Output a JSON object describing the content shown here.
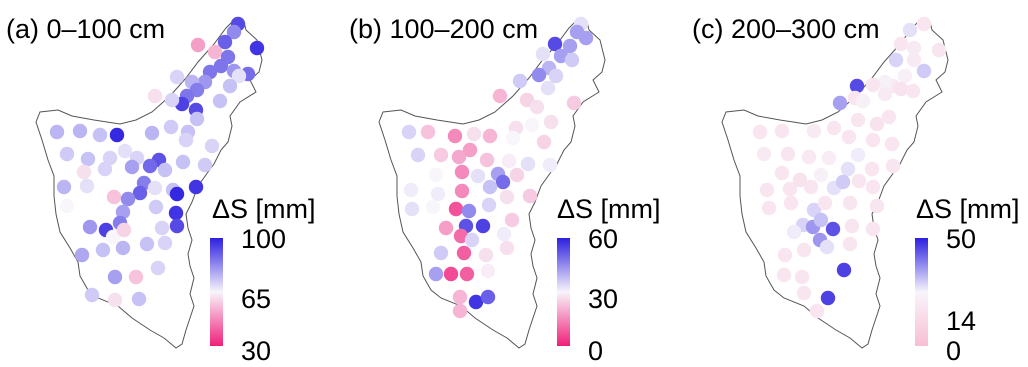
{
  "panels": [
    {
      "title": "(a) 0–100 cm",
      "legend": {
        "title": "ΔS [mm]",
        "ticks": [
          "100",
          "65",
          "30"
        ],
        "colors": {
          "high": "#2d1fe0",
          "mid": "#f8f5fb",
          "low": "#f01f7a"
        }
      }
    },
    {
      "title": "(b) 100–200 cm",
      "legend": {
        "title": "ΔS [mm]",
        "ticks": [
          "60",
          "30",
          "0"
        ],
        "colors": {
          "high": "#2d1fe0",
          "mid": "#f8f5fb",
          "low": "#f01f7a"
        }
      }
    },
    {
      "title": "(c) 200–300 cm",
      "legend": {
        "title": "ΔS [mm]",
        "ticks": [
          "50",
          "14",
          "0"
        ],
        "colors": {
          "high": "#2d1fe0",
          "mid": "#f8f5fb",
          "low": "#f8bfd3"
        }
      }
    }
  ],
  "map": {
    "outline_color": "#555555",
    "points_a": [
      [
        238,
        24,
        0.9
      ],
      [
        234,
        32,
        0.75
      ],
      [
        225,
        42,
        0.85
      ],
      [
        257,
        48,
        0.95
      ],
      [
        198,
        45,
        0.3
      ],
      [
        215,
        52,
        0.35
      ],
      [
        228,
        57,
        0.8
      ],
      [
        221,
        66,
        0.8
      ],
      [
        234,
        71,
        0.72
      ],
      [
        248,
        74,
        0.82
      ],
      [
        239,
        76,
        0.55
      ],
      [
        210,
        72,
        0.8
      ],
      [
        205,
        82,
        0.72
      ],
      [
        192,
        82,
        0.65
      ],
      [
        230,
        86,
        0.62
      ],
      [
        177,
        77,
        0.58
      ],
      [
        197,
        90,
        0.78
      ],
      [
        187,
        96,
        0.8
      ],
      [
        155,
        96,
        0.45
      ],
      [
        182,
        104,
        0.92
      ],
      [
        196,
        110,
        0.9
      ],
      [
        172,
        100,
        0.58
      ],
      [
        220,
        101,
        0.62
      ],
      [
        197,
        119,
        0.62
      ],
      [
        171,
        127,
        0.6
      ],
      [
        188,
        132,
        0.62
      ],
      [
        212,
        146,
        0.58
      ],
      [
        57,
        132,
        0.65
      ],
      [
        80,
        131,
        0.65
      ],
      [
        100,
        135,
        0.62
      ],
      [
        117,
        135,
        0.98
      ],
      [
        152,
        133,
        0.65
      ],
      [
        186,
        140,
        0.58
      ],
      [
        67,
        154,
        0.6
      ],
      [
        88,
        159,
        0.62
      ],
      [
        110,
        158,
        0.58
      ],
      [
        125,
        151,
        0.55
      ],
      [
        137,
        158,
        0.58
      ],
      [
        159,
        160,
        0.88
      ],
      [
        183,
        162,
        0.62
      ],
      [
        205,
        165,
        0.6
      ],
      [
        84,
        172,
        0.45
      ],
      [
        105,
        169,
        0.58
      ],
      [
        132,
        167,
        0.7
      ],
      [
        150,
        166,
        0.83
      ],
      [
        165,
        170,
        0.62
      ],
      [
        64,
        187,
        0.65
      ],
      [
        87,
        186,
        0.55
      ],
      [
        144,
        183,
        0.78
      ],
      [
        140,
        193,
        0.85
      ],
      [
        155,
        188,
        0.55
      ],
      [
        173,
        190,
        0.62
      ],
      [
        196,
        187,
        0.95
      ],
      [
        67,
        206,
        0.5
      ],
      [
        114,
        197,
        0.38
      ],
      [
        128,
        199,
        0.75
      ],
      [
        156,
        207,
        0.6
      ],
      [
        177,
        194,
        0.98
      ],
      [
        123,
        212,
        0.7
      ],
      [
        176,
        213,
        0.95
      ],
      [
        90,
        227,
        0.72
      ],
      [
        120,
        223,
        0.78
      ],
      [
        106,
        230,
        0.92
      ],
      [
        113,
        237,
        0.5
      ],
      [
        124,
        230,
        0.42
      ],
      [
        162,
        228,
        0.58
      ],
      [
        177,
        226,
        0.9
      ],
      [
        103,
        250,
        0.62
      ],
      [
        123,
        248,
        0.65
      ],
      [
        147,
        244,
        0.62
      ],
      [
        165,
        243,
        0.58
      ],
      [
        82,
        255,
        0.68
      ],
      [
        115,
        277,
        0.7
      ],
      [
        136,
        277,
        0.38
      ],
      [
        158,
        268,
        0.58
      ],
      [
        92,
        295,
        0.6
      ],
      [
        115,
        300,
        0.45
      ],
      [
        139,
        299,
        0.62
      ]
    ],
    "points_b": [
      [
        238,
        24,
        0.55
      ],
      [
        234,
        32,
        0.7
      ],
      [
        243,
        38,
        0.7
      ],
      [
        212,
        44,
        0.9
      ],
      [
        227,
        46,
        0.7
      ],
      [
        200,
        54,
        0.55
      ],
      [
        218,
        56,
        0.7
      ],
      [
        229,
        60,
        0.6
      ],
      [
        206,
        68,
        0.65
      ],
      [
        196,
        75,
        0.75
      ],
      [
        213,
        76,
        0.58
      ],
      [
        205,
        88,
        0.55
      ],
      [
        177,
        81,
        0.6
      ],
      [
        157,
        96,
        0.35
      ],
      [
        184,
        100,
        0.42
      ],
      [
        194,
        107,
        0.45
      ],
      [
        231,
        103,
        0.4
      ],
      [
        208,
        122,
        0.45
      ],
      [
        189,
        125,
        0.5
      ],
      [
        173,
        128,
        0.45
      ],
      [
        66,
        132,
        0.58
      ],
      [
        85,
        132,
        0.38
      ],
      [
        112,
        136,
        0.25
      ],
      [
        131,
        134,
        0.45
      ],
      [
        147,
        136,
        0.35
      ],
      [
        170,
        138,
        0.5
      ],
      [
        201,
        142,
        0.42
      ],
      [
        75,
        155,
        0.58
      ],
      [
        98,
        155,
        0.4
      ],
      [
        116,
        157,
        0.32
      ],
      [
        127,
        150,
        0.3
      ],
      [
        144,
        160,
        0.38
      ],
      [
        166,
        161,
        0.48
      ],
      [
        185,
        164,
        0.55
      ],
      [
        207,
        165,
        0.52
      ],
      [
        93,
        175,
        0.5
      ],
      [
        119,
        172,
        0.25
      ],
      [
        135,
        176,
        0.55
      ],
      [
        155,
        174,
        0.7
      ],
      [
        160,
        182,
        0.82
      ],
      [
        174,
        175,
        0.42
      ],
      [
        68,
        190,
        0.52
      ],
      [
        95,
        194,
        0.52
      ],
      [
        119,
        191,
        0.25
      ],
      [
        147,
        187,
        0.62
      ],
      [
        164,
        197,
        0.45
      ],
      [
        187,
        196,
        0.4
      ],
      [
        69,
        209,
        0.55
      ],
      [
        90,
        207,
        0.5
      ],
      [
        113,
        209,
        0.12
      ],
      [
        126,
        211,
        0.75
      ],
      [
        146,
        205,
        0.58
      ],
      [
        169,
        220,
        0.4
      ],
      [
        123,
        226,
        0.88
      ],
      [
        140,
        226,
        0.92
      ],
      [
        103,
        228,
        0.3
      ],
      [
        118,
        236,
        0.18
      ],
      [
        129,
        240,
        0.58
      ],
      [
        161,
        234,
        0.52
      ],
      [
        98,
        253,
        0.6
      ],
      [
        121,
        253,
        0.15
      ],
      [
        143,
        255,
        0.45
      ],
      [
        164,
        248,
        0.45
      ],
      [
        93,
        274,
        0.7
      ],
      [
        108,
        274,
        0.1
      ],
      [
        124,
        274,
        0.15
      ],
      [
        145,
        271,
        0.48
      ],
      [
        117,
        297,
        0.35
      ],
      [
        133,
        302,
        0.95
      ],
      [
        145,
        297,
        0.85
      ],
      [
        117,
        311,
        0.35
      ]
    ],
    "points_c": [
      [
        238,
        24,
        0.35
      ],
      [
        224,
        30,
        0.55
      ],
      [
        215,
        44,
        0.35
      ],
      [
        228,
        48,
        0.4
      ],
      [
        253,
        50,
        0.35
      ],
      [
        210,
        60,
        0.58
      ],
      [
        228,
        60,
        0.4
      ],
      [
        238,
        71,
        0.6
      ],
      [
        219,
        76,
        0.45
      ],
      [
        207,
        86,
        0.4
      ],
      [
        199,
        82,
        0.45
      ],
      [
        187,
        85,
        0.35
      ],
      [
        171,
        86,
        0.9
      ],
      [
        215,
        89,
        0.32
      ],
      [
        227,
        91,
        0.35
      ],
      [
        199,
        94,
        0.4
      ],
      [
        169,
        98,
        0.35
      ],
      [
        154,
        103,
        0.7
      ],
      [
        177,
        101,
        0.45
      ],
      [
        203,
        117,
        0.35
      ],
      [
        172,
        120,
        0.35
      ],
      [
        191,
        124,
        0.32
      ],
      [
        74,
        132,
        0.35
      ],
      [
        96,
        131,
        0.35
      ],
      [
        128,
        131,
        0.4
      ],
      [
        148,
        128,
        0.35
      ],
      [
        163,
        137,
        0.35
      ],
      [
        187,
        140,
        0.35
      ],
      [
        206,
        144,
        0.35
      ],
      [
        78,
        154,
        0.4
      ],
      [
        102,
        154,
        0.35
      ],
      [
        123,
        157,
        0.38
      ],
      [
        143,
        158,
        0.42
      ],
      [
        172,
        155,
        0.52
      ],
      [
        162,
        169,
        0.55
      ],
      [
        186,
        169,
        0.35
      ],
      [
        207,
        166,
        0.35
      ],
      [
        96,
        173,
        0.35
      ],
      [
        114,
        180,
        0.32
      ],
      [
        135,
        175,
        0.45
      ],
      [
        148,
        188,
        0.55
      ],
      [
        157,
        182,
        0.6
      ],
      [
        173,
        181,
        0.35
      ],
      [
        187,
        187,
        0.35
      ],
      [
        81,
        190,
        0.35
      ],
      [
        104,
        189,
        0.35
      ],
      [
        125,
        187,
        0.35
      ],
      [
        83,
        208,
        0.35
      ],
      [
        105,
        203,
        0.35
      ],
      [
        128,
        210,
        0.58
      ],
      [
        139,
        203,
        0.35
      ],
      [
        164,
        203,
        0.35
      ],
      [
        191,
        206,
        0.35
      ],
      [
        117,
        225,
        0.58
      ],
      [
        127,
        227,
        0.72
      ],
      [
        135,
        220,
        0.62
      ],
      [
        147,
        229,
        0.88
      ],
      [
        108,
        232,
        0.52
      ],
      [
        134,
        240,
        0.72
      ],
      [
        166,
        226,
        0.35
      ],
      [
        187,
        229,
        0.35
      ],
      [
        99,
        255,
        0.35
      ],
      [
        118,
        250,
        0.35
      ],
      [
        141,
        247,
        0.55
      ],
      [
        164,
        244,
        0.35
      ],
      [
        98,
        275,
        0.35
      ],
      [
        116,
        277,
        0.35
      ],
      [
        158,
        270,
        0.92
      ],
      [
        118,
        293,
        0.35
      ],
      [
        142,
        298,
        0.92
      ],
      [
        131,
        311,
        0.35
      ]
    ]
  }
}
